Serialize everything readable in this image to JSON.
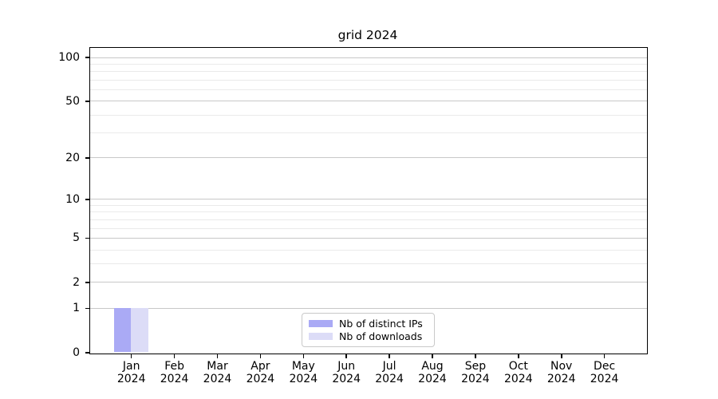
{
  "title": "grid 2024",
  "legend": {
    "items": [
      {
        "label": "Nb of distinct IPs",
        "color": "#aaaaf5"
      },
      {
        "label": "Nb of downloads",
        "color": "#dcdcf7"
      }
    ]
  },
  "chart_data": {
    "type": "bar",
    "title": "grid 2024",
    "categories": [
      "Jan",
      "Feb",
      "Mar",
      "Apr",
      "May",
      "Jun",
      "Jul",
      "Aug",
      "Sep",
      "Oct",
      "Nov",
      "Dec"
    ],
    "x_tick_second_line": "2024",
    "series": [
      {
        "name": "Nb of distinct IPs",
        "color": "#aaaaf5",
        "values": [
          1,
          0,
          0,
          0,
          0,
          0,
          0,
          0,
          0,
          0,
          0,
          0
        ]
      },
      {
        "name": "Nb of downloads",
        "color": "#dcdcf7",
        "values": [
          1,
          0,
          0,
          0,
          0,
          0,
          0,
          0,
          0,
          0,
          0,
          0
        ]
      }
    ],
    "y_scale": "log10(1+y)",
    "y_axis": {
      "min": 0,
      "max": 100,
      "major_ticks": [
        100,
        50,
        20,
        10,
        5,
        2,
        1,
        0
      ],
      "minor_ticks": [
        3,
        4,
        6,
        7,
        8,
        9,
        30,
        40,
        60,
        70,
        80,
        90
      ]
    },
    "grid": {
      "major": true,
      "minor": true
    },
    "legend_position": "bottom-center",
    "colors": {
      "major_grid": "#c8c8c8",
      "minor_grid": "#eaeaea",
      "spine": "#000000",
      "background": "#ffffff"
    }
  }
}
